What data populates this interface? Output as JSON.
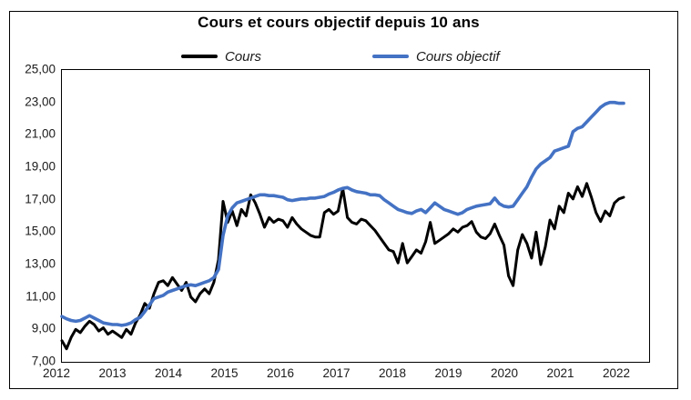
{
  "chart_data": {
    "type": "line",
    "title": "Cours et cours objectif depuis 10 ans",
    "xlabel": "",
    "ylabel": "",
    "ylim": [
      7,
      25
    ],
    "y_tick_step": 2,
    "y_ticks": [
      "25,00",
      "23,00",
      "21,00",
      "19,00",
      "17,00",
      "15,00",
      "13,00",
      "11,00",
      "9,00",
      "7,00"
    ],
    "x_ticks": [
      "2012",
      "2013",
      "2014",
      "2015",
      "2016",
      "2017",
      "2018",
      "2019",
      "2020",
      "2021",
      "2022"
    ],
    "x_interval": "monthly",
    "x_range": "2012-01 to 2022-03",
    "grid": false,
    "legend_position": "top",
    "series": [
      {
        "name": "Cours",
        "color": "#000000",
        "values": [
          8.3,
          7.8,
          8.5,
          9.0,
          8.8,
          9.2,
          9.5,
          9.3,
          8.9,
          9.1,
          8.7,
          8.9,
          8.7,
          8.5,
          9.0,
          8.7,
          9.4,
          9.9,
          10.6,
          10.3,
          11.2,
          11.9,
          12.0,
          11.7,
          12.2,
          11.8,
          11.4,
          11.9,
          11.0,
          10.7,
          11.2,
          11.5,
          11.2,
          11.9,
          13.3,
          16.9,
          15.6,
          16.3,
          15.4,
          16.4,
          16.0,
          17.3,
          16.8,
          16.1,
          15.3,
          15.9,
          15.6,
          15.8,
          15.7,
          15.3,
          15.9,
          15.5,
          15.2,
          15.0,
          14.8,
          14.7,
          14.7,
          16.2,
          16.4,
          16.1,
          16.3,
          17.7,
          15.9,
          15.6,
          15.5,
          15.8,
          15.7,
          15.4,
          15.1,
          14.7,
          14.3,
          13.9,
          13.8,
          13.1,
          14.3,
          13.1,
          13.5,
          13.9,
          13.7,
          14.4,
          15.6,
          14.3,
          14.5,
          14.7,
          14.9,
          15.2,
          15.0,
          15.3,
          15.4,
          15.65,
          15.0,
          14.7,
          14.6,
          14.9,
          15.5,
          14.8,
          14.2,
          12.3,
          11.7,
          13.9,
          14.85,
          14.3,
          13.4,
          15.0,
          13.0,
          14.1,
          15.75,
          15.2,
          16.6,
          16.2,
          17.4,
          17.05,
          17.8,
          17.2,
          18.0,
          17.15,
          16.2,
          15.65,
          16.3,
          16.0,
          16.8,
          17.05,
          17.15
        ]
      },
      {
        "name": "Cours objectif",
        "color": "#4472C4",
        "values": [
          9.8,
          9.65,
          9.55,
          9.5,
          9.55,
          9.7,
          9.85,
          9.7,
          9.55,
          9.4,
          9.35,
          9.3,
          9.3,
          9.25,
          9.3,
          9.4,
          9.6,
          9.75,
          10.1,
          10.5,
          10.9,
          11.0,
          11.1,
          11.3,
          11.4,
          11.5,
          11.6,
          11.7,
          11.75,
          11.7,
          11.8,
          11.9,
          12.0,
          12.2,
          12.7,
          14.8,
          16.0,
          16.5,
          16.8,
          16.9,
          17.0,
          17.1,
          17.2,
          17.3,
          17.3,
          17.25,
          17.25,
          17.2,
          17.15,
          17.0,
          16.95,
          17.0,
          17.05,
          17.05,
          17.1,
          17.1,
          17.15,
          17.2,
          17.35,
          17.45,
          17.6,
          17.7,
          17.75,
          17.6,
          17.5,
          17.45,
          17.4,
          17.3,
          17.3,
          17.25,
          17.0,
          16.8,
          16.6,
          16.4,
          16.3,
          16.2,
          16.15,
          16.3,
          16.4,
          16.2,
          16.5,
          16.8,
          16.6,
          16.4,
          16.3,
          16.2,
          16.1,
          16.2,
          16.4,
          16.5,
          16.6,
          16.65,
          16.7,
          16.75,
          17.1,
          16.75,
          16.6,
          16.55,
          16.6,
          17.0,
          17.4,
          17.8,
          18.4,
          18.9,
          19.2,
          19.4,
          19.6,
          20.0,
          20.1,
          20.2,
          20.3,
          21.2,
          21.4,
          21.5,
          21.8,
          22.1,
          22.4,
          22.7,
          22.9,
          23.0,
          23.0,
          22.95,
          22.95
        ]
      }
    ]
  }
}
